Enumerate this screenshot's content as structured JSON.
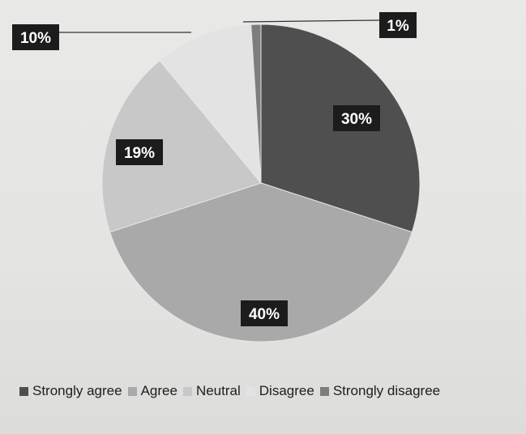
{
  "chart_data": {
    "type": "pie",
    "title": "",
    "categories": [
      "Strongly agree",
      "Agree",
      "Neutral",
      "Disagree",
      "Strongly disagree"
    ],
    "values": [
      30,
      40,
      19,
      10,
      1
    ],
    "labels": [
      "30%",
      "40%",
      "19%",
      "10%",
      "1%"
    ],
    "colors": [
      "#4f4f4f",
      "#a9a9a9",
      "#c8c8c8",
      "#e3e3e3",
      "#7d7d7d"
    ],
    "legend_position": "bottom",
    "label_style": {
      "background": "#1c1c1c",
      "text_color": "#ffffff"
    }
  }
}
